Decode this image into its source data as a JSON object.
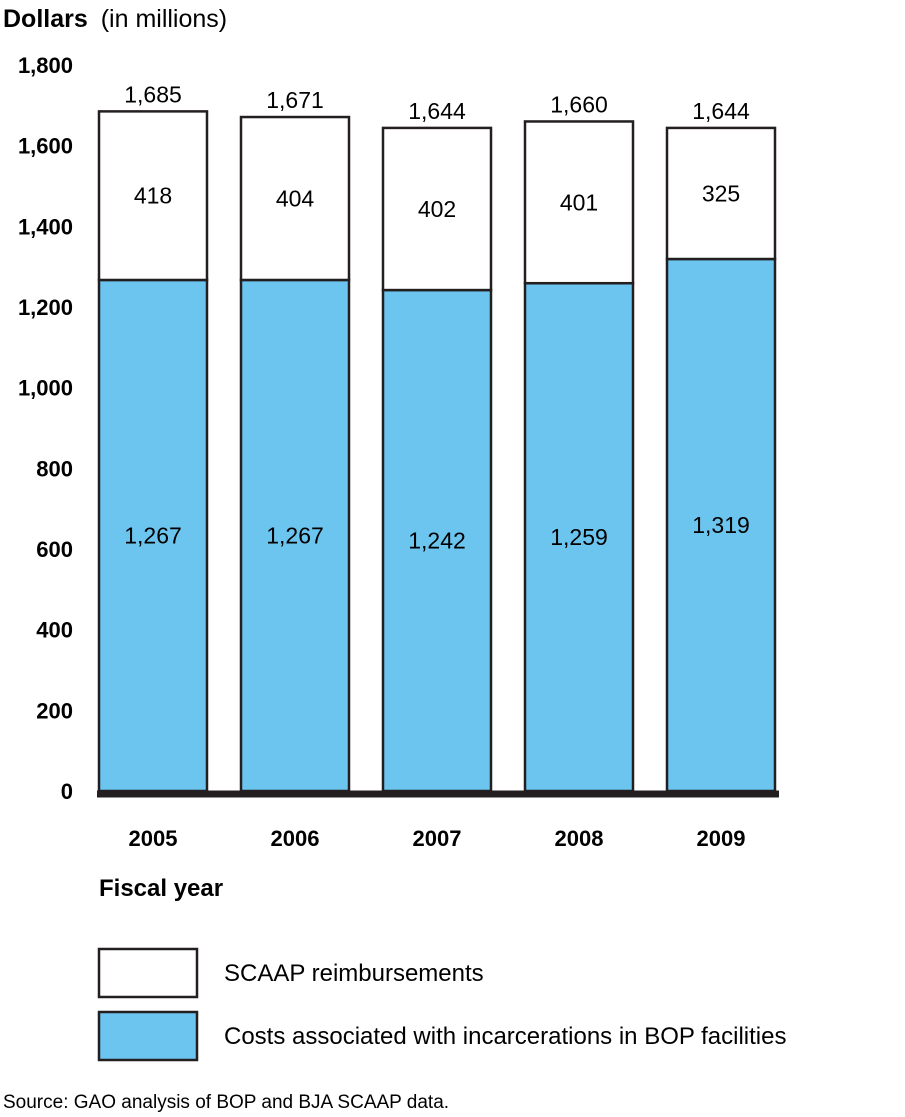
{
  "chart_data": {
    "type": "bar",
    "stacked": true,
    "title": "",
    "ylabel": "Dollars",
    "ylabel_suffix": "(in millions)",
    "xlabel": "Fiscal year",
    "ylim": [
      0,
      1800
    ],
    "yticks": [
      0,
      200,
      400,
      600,
      800,
      1000,
      1200,
      1400,
      1600,
      1800
    ],
    "ytick_labels": [
      "0",
      "200",
      "400",
      "600",
      "800",
      "1,000",
      "1,200",
      "1,400",
      "1,600",
      "1,800"
    ],
    "categories": [
      "2005",
      "2006",
      "2007",
      "2008",
      "2009"
    ],
    "series": [
      {
        "name": "Costs associated with incarcerations in BOP facilities",
        "color": "#6cc5ef",
        "values": [
          1267,
          1267,
          1242,
          1259,
          1319
        ],
        "labels": [
          "1,267",
          "1,267",
          "1,242",
          "1,259",
          "1,319"
        ]
      },
      {
        "name": "SCAAP reimbursements",
        "color": "#ffffff",
        "values": [
          418,
          404,
          402,
          401,
          325
        ],
        "labels": [
          "418",
          "404",
          "402",
          "401",
          "325"
        ]
      }
    ],
    "totals": [
      1685,
      1671,
      1644,
      1660,
      1644
    ],
    "total_labels": [
      "1,685",
      "1,671",
      "1,644",
      "1,660",
      "1,644"
    ],
    "legend": [
      "SCAAP reimbursements",
      "Costs associated with incarcerations in BOP facilities"
    ],
    "legend_position": "bottom-left",
    "grid": false
  },
  "source": "Source: GAO analysis of BOP and BJA SCAAP data."
}
